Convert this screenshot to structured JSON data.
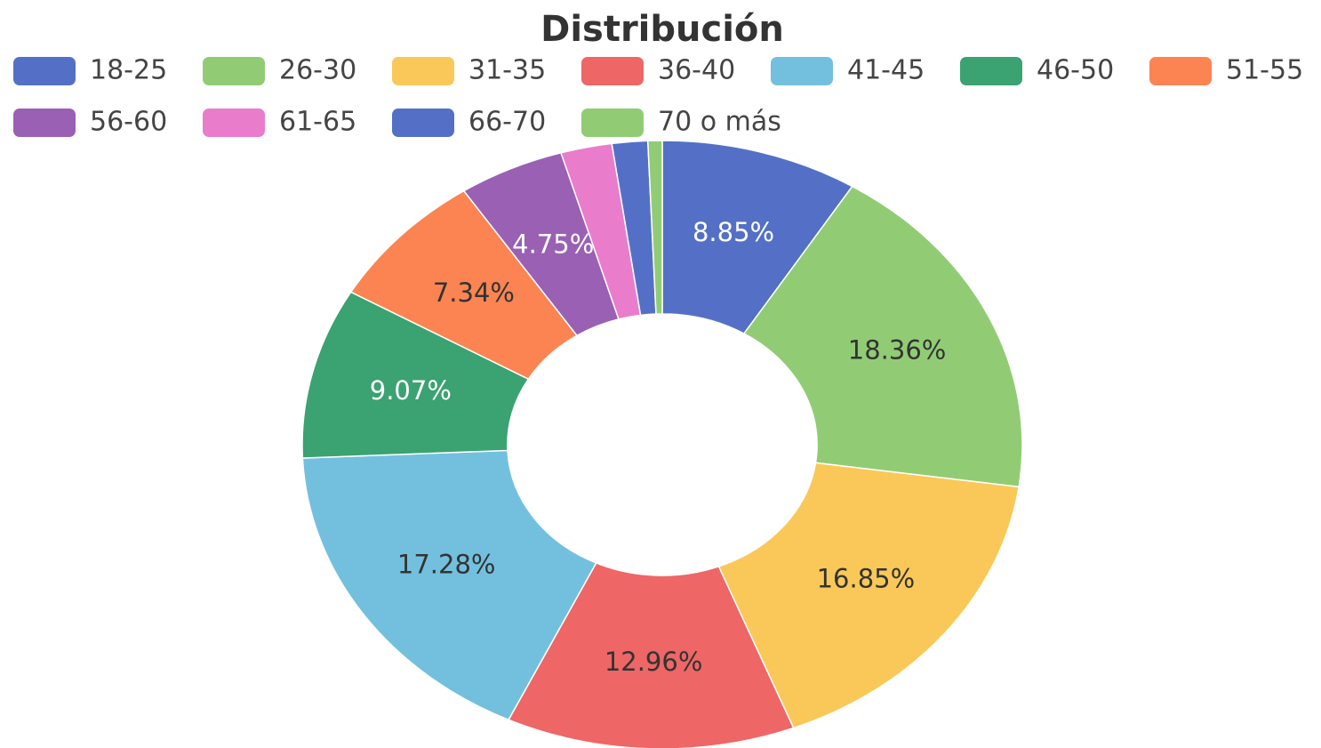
{
  "chart_data": {
    "type": "donut",
    "title": "Distribución",
    "categories": [
      "18-25",
      "26-30",
      "31-35",
      "36-40",
      "41-45",
      "46-50",
      "51-55",
      "56-60",
      "61-65",
      "66-70",
      "70 o más"
    ],
    "values": [
      8.85,
      18.36,
      16.85,
      12.96,
      17.28,
      9.07,
      7.34,
      4.75,
      2.3,
      1.6,
      0.64
    ],
    "value_labels": [
      "8.85%",
      "18.36%",
      "16.85%",
      "12.96%",
      "17.28%",
      "9.07%",
      "7.34%",
      "4.75%",
      null,
      null,
      null
    ],
    "colors": [
      "#5470c6",
      "#91cc75",
      "#fac858",
      "#ee6666",
      "#73c0de",
      "#3ba272",
      "#fc8452",
      "#9a60b4",
      "#ea7ccc",
      "#5470c6",
      "#91cc75"
    ],
    "legend": "top"
  }
}
